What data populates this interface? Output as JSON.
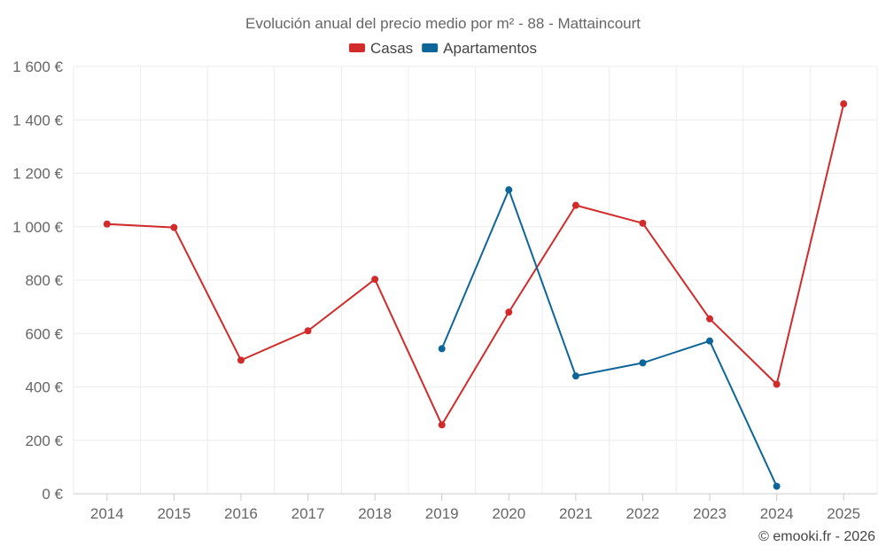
{
  "chart_data": {
    "type": "line",
    "title": "Evolución anual del precio medio por m² - 88 - Mattaincourt",
    "xlabel": "",
    "ylabel": "",
    "categories": [
      "2014",
      "2015",
      "2016",
      "2017",
      "2018",
      "2019",
      "2020",
      "2021",
      "2022",
      "2023",
      "2024",
      "2025"
    ],
    "ylim": [
      0,
      1600
    ],
    "y_ticks": [
      {
        "value": 0,
        "label": "0 €"
      },
      {
        "value": 200,
        "label": "200 €"
      },
      {
        "value": 400,
        "label": "400 €"
      },
      {
        "value": 600,
        "label": "600 €"
      },
      {
        "value": 800,
        "label": "800 €"
      },
      {
        "value": 1000,
        "label": "1 000 €"
      },
      {
        "value": 1200,
        "label": "1 200 €"
      },
      {
        "value": 1400,
        "label": "1 400 €"
      },
      {
        "value": 1600,
        "label": "1 600 €"
      }
    ],
    "grid": true,
    "legend_position": "top-center",
    "series": [
      {
        "name": "Casas",
        "color": "#d12b2b",
        "values": [
          1010,
          997,
          500,
          610,
          803,
          258,
          680,
          1080,
          1013,
          655,
          410,
          1460
        ]
      },
      {
        "name": "Apartamentos",
        "color": "#0e6698",
        "values": [
          null,
          null,
          null,
          null,
          null,
          543,
          1138,
          441,
          490,
          572,
          28,
          null
        ]
      }
    ]
  },
  "credit": "© emooki.fr - 2026"
}
